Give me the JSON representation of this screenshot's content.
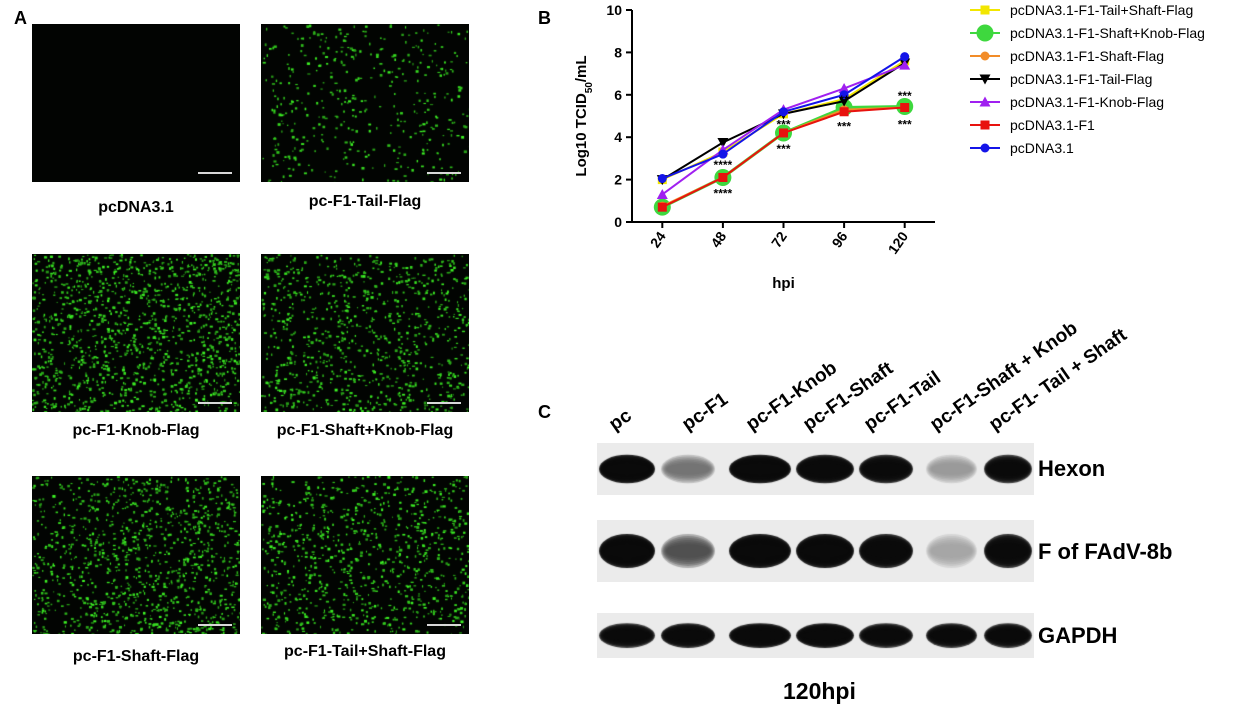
{
  "panels": {
    "a": "A",
    "b": "B",
    "c": "C"
  },
  "panel_a": {
    "images": [
      {
        "label": "pcDNA3.1",
        "density": 0
      },
      {
        "label": "pc-F1-Tail-Flag",
        "density": 420
      },
      {
        "label": "pc-F1-Knob-Flag",
        "density": 1300
      },
      {
        "label": "pc-F1-Shaft+Knob-Flag",
        "density": 900
      },
      {
        "label": "pc-F1-Shaft-Flag",
        "density": 1100
      },
      {
        "label": "pc-F1-Tail+Shaft-Flag",
        "density": 900
      }
    ]
  },
  "chart_data": {
    "type": "line",
    "xlabel": "hpi",
    "ylabel": "Log10 TCID50/mL",
    "categories": [
      "24",
      "48",
      "72",
      "96",
      "120"
    ],
    "ylim": [
      0,
      10
    ],
    "yticks": [
      0,
      2,
      4,
      6,
      8,
      10
    ],
    "legend_position": "right",
    "series": [
      {
        "name": "pcDNA3.1-F1-Tail+Shaft-Flag",
        "color": "#f2e600",
        "marker": "square",
        "values": [
          2.0,
          3.3,
          5.1,
          5.8,
          7.6
        ]
      },
      {
        "name": "pcDNA3.1-F1-Shaft+Knob-Flag",
        "color": "#3ed83e",
        "marker": "circle-large",
        "values": [
          0.7,
          2.1,
          4.2,
          5.4,
          5.45
        ]
      },
      {
        "name": "pcDNA3.1-F1-Shaft-Flag",
        "color": "#f28c28",
        "marker": "circle",
        "values": [
          0.75,
          2.1,
          4.2,
          5.3,
          5.4
        ]
      },
      {
        "name": "pcDNA3.1-F1-Tail-Flag",
        "color": "#000000",
        "marker": "triangle-down",
        "values": [
          2.0,
          3.75,
          5.1,
          5.7,
          7.5
        ]
      },
      {
        "name": "pcDNA3.1-F1-Knob-Flag",
        "color": "#a020f0",
        "marker": "triangle-up",
        "values": [
          1.3,
          3.4,
          5.3,
          6.3,
          7.4
        ]
      },
      {
        "name": "pcDNA3.1-F1",
        "color": "#e8120e",
        "marker": "square",
        "values": [
          0.7,
          2.1,
          4.2,
          5.2,
          5.4
        ]
      },
      {
        "name": "pcDNA3.1",
        "color": "#1414e8",
        "marker": "circle",
        "values": [
          2.05,
          3.2,
          5.2,
          6.0,
          7.8
        ]
      }
    ],
    "annotations": [
      {
        "text": "****",
        "x": "48",
        "y": 1.35
      },
      {
        "text": "****",
        "x": "48",
        "y": 2.7
      },
      {
        "text": "***",
        "x": "72",
        "y": 3.45
      },
      {
        "text": "***",
        "x": "72",
        "y": 4.6
      },
      {
        "text": "***",
        "x": "96",
        "y": 4.5
      },
      {
        "text": "**",
        "x": "96",
        "y": 5.75
      },
      {
        "text": "***",
        "x": "120",
        "y": 4.6
      },
      {
        "text": "***",
        "x": "120",
        "y": 5.95
      }
    ]
  },
  "panel_c": {
    "lanes": [
      "pc",
      "pc-F1",
      "pc-F1-Knob",
      "pc-F1-Shaft",
      "pc-F1-Tail",
      "pc-F1-Shaft + Knob",
      "pc-F1- Tail + Shaft"
    ],
    "blots": [
      {
        "label": "Hexon",
        "intensities": [
          1.0,
          0.2,
          1.0,
          0.95,
          0.9,
          0.12,
          0.85
        ]
      },
      {
        "label": "F of FAdV-8b",
        "intensities": [
          1.0,
          0.3,
          1.0,
          1.0,
          0.95,
          0.1,
          0.9
        ]
      },
      {
        "label": "GAPDH",
        "intensities": [
          0.85,
          0.9,
          0.95,
          0.95,
          0.85,
          0.85,
          0.85
        ]
      }
    ],
    "caption": "120hpi"
  }
}
